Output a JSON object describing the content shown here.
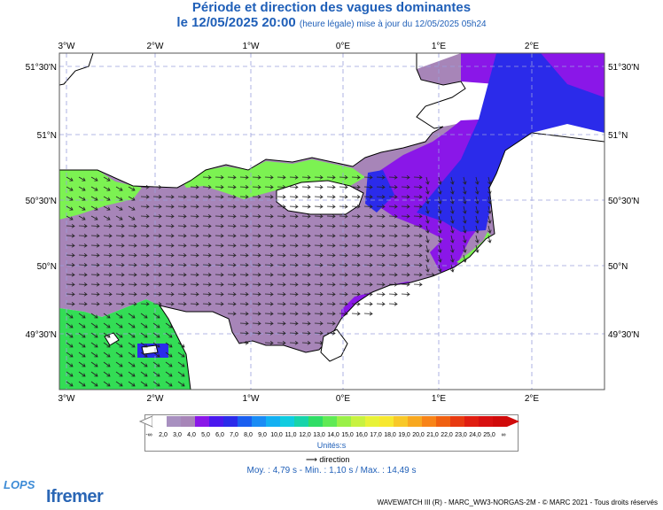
{
  "header": {
    "title": "Période et direction des vagues dominantes",
    "subtitle_main": "le 12/05/2025 20:00",
    "subtitle_note": "(heure légale) mise à jour du 12/05/2025 05h24"
  },
  "map": {
    "lon_labels": [
      "3°W",
      "2°W",
      "1°W",
      "0°E",
      "1°E",
      "2°E"
    ],
    "lat_labels": [
      "51°30'N",
      "51°N",
      "50°30'N",
      "50°N",
      "49°30'N"
    ],
    "colors": {
      "land": "#ffffff",
      "purple_grey": "#a785b8",
      "violet": "#8a17e8",
      "blue": "#2b2bea",
      "light_green": "#7cf252",
      "green": "#33dd55",
      "grid": "#9aa0dd"
    }
  },
  "legend": {
    "labels": [
      "-∞",
      "2,0",
      "3,0",
      "4,0",
      "5,0",
      "6,0",
      "7,0",
      "8,0",
      "9,0",
      "10,0",
      "11,0",
      "12,0",
      "13,0",
      "14,0",
      "15,0",
      "16,0",
      "17,0",
      "18,0",
      "19,0",
      "20,0",
      "21,0",
      "22,0",
      "23,0",
      "24,0",
      "25,0",
      "∞"
    ],
    "colors": [
      "#ffffff",
      "#a890c0",
      "#a785b8",
      "#8a17e8",
      "#4a18ee",
      "#2b2bea",
      "#1a5ff0",
      "#1a8cf5",
      "#13b0f2",
      "#10cce0",
      "#17d4aa",
      "#30dd66",
      "#60ea55",
      "#9af048",
      "#c8f240",
      "#e8f238",
      "#f7e830",
      "#f8c828",
      "#f8a820",
      "#f88418",
      "#f06010",
      "#e83a10",
      "#e01e10",
      "#d81010",
      "#d00a0a"
    ],
    "unit": "Unités:s",
    "direction_label": "direction",
    "stats": "Moy. : 4,79 s   -   Min. : 1,10 s / Max. : 14,49 s"
  },
  "footer": {
    "credits": "WAVEWATCH III (R) - MARC_WW3-NORGAS-2M - © MARC 2021 - Tous droits réservés",
    "logo_lops": "LOPS",
    "logo_ifremer": "Ifremer"
  }
}
